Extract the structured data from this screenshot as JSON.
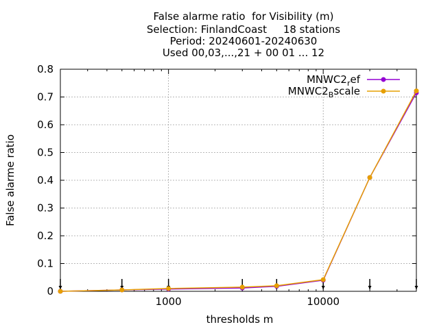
{
  "chart_data": {
    "type": "line",
    "title": [
      "False alarme ratio  for Visibility (m)",
      "Selection: FinlandCoast     18 stations",
      "Period: 20240601-20240630",
      "Used 00,03,...,21 + 00 01 ... 12"
    ],
    "xlabel": "thresholds m",
    "ylabel": "False alarme ratio",
    "x_scale": "log",
    "xlim": [
      200,
      40000
    ],
    "ylim": [
      0,
      0.8
    ],
    "x_ticks": [
      1000,
      10000
    ],
    "x_tick_labels": [
      "1000",
      "10000"
    ],
    "y_ticks": [
      0,
      0.1,
      0.2,
      0.3,
      0.4,
      0.5,
      0.6,
      0.7,
      0.8
    ],
    "y_tick_labels": [
      "0",
      "0.1",
      "0.2",
      "0.3",
      "0.4",
      "0.5",
      "0.6",
      "0.7",
      "0.8"
    ],
    "grid": true,
    "legend_position": "top-right",
    "x": [
      200,
      500,
      1000,
      3000,
      5000,
      10000,
      20000,
      40000
    ],
    "series": [
      {
        "name": "MNWC2_ref",
        "legend_main": "MNWC2",
        "legend_sub": "r",
        "legend_tail": "ef",
        "color": "#9400d3",
        "values": [
          0.0,
          0.005,
          0.008,
          0.012,
          0.018,
          0.04,
          0.41,
          0.715
        ]
      },
      {
        "name": "MNWC2_Bscale",
        "legend_main": "MNWC2",
        "legend_sub": "B",
        "legend_tail": "scale",
        "color": "#e69f00",
        "values": [
          0.0,
          0.005,
          0.01,
          0.015,
          0.02,
          0.042,
          0.41,
          0.722
        ]
      }
    ],
    "station_marks_x": [
      200,
      500,
      1000,
      3000,
      5000,
      10000,
      20000,
      40000
    ]
  }
}
